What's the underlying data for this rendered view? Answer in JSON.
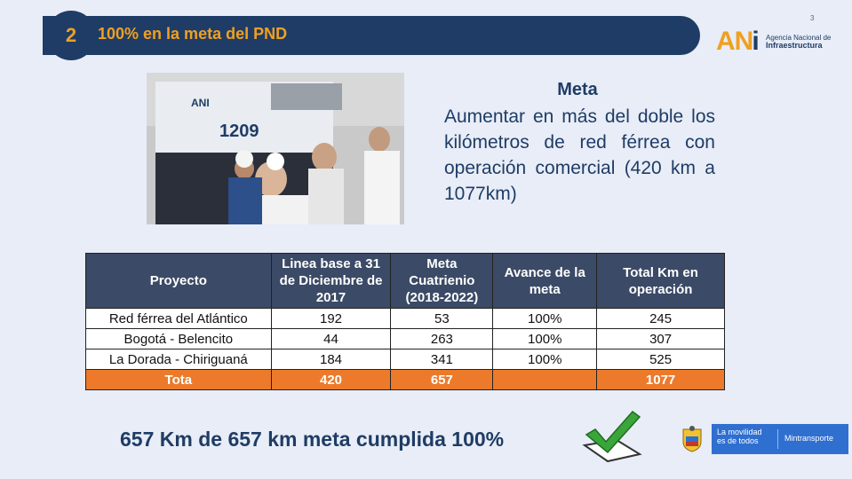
{
  "header": {
    "number": "2",
    "title": "100% en la meta del PND",
    "page_number": "3",
    "logo": {
      "mark": "ANI",
      "line1": "Agencia Nacional de",
      "line2": "Infraestructura"
    }
  },
  "photo": {
    "locomotive_number": "1209"
  },
  "meta": {
    "title": "Meta",
    "body": "Aumentar en más del doble los kilómetros de red férrea con operación comercial (420 km a 1077km)"
  },
  "table": {
    "headers": [
      "Proyecto",
      "Linea base a 31 de Diciembre de 2017",
      "Meta Cuatrienio (2018-2022)",
      "Avance de la meta",
      "Total Km en operación"
    ],
    "rows": [
      [
        "Red férrea del Atlántico",
        "192",
        "53",
        "100%",
        "245"
      ],
      [
        "Bogotá - Belencito",
        "44",
        "263",
        "100%",
        "307"
      ],
      [
        "La Dorada - Chiriguaná",
        "184",
        "341",
        "100%",
        "525"
      ]
    ],
    "total": [
      "Tota",
      "420",
      "657",
      "",
      "1077"
    ]
  },
  "summary": "657 Km  de 657 km meta cumplida 100%",
  "footer": {
    "slogan_line1": "La movilidad",
    "slogan_line2": "es de todos",
    "ministry": "Mintransporte"
  },
  "colors": {
    "navy": "#1f3c66",
    "orange": "#f0a020",
    "total_row": "#ec7a2a",
    "gov_blue": "#2f6fd0"
  }
}
